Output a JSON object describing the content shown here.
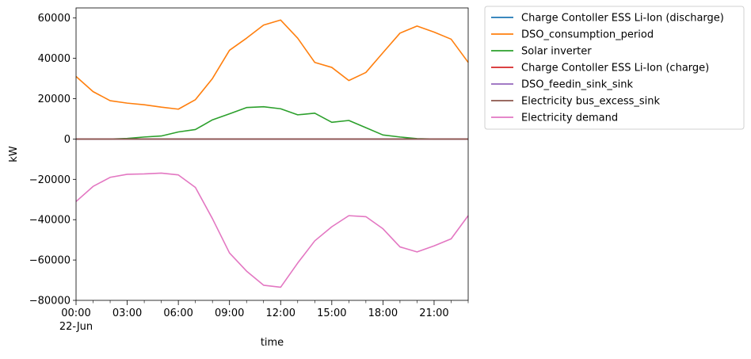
{
  "chart_data": {
    "type": "line",
    "title": "",
    "xlabel": "time",
    "ylabel": "kW",
    "x": [
      "00:00",
      "01:00",
      "02:00",
      "03:00",
      "04:00",
      "05:00",
      "06:00",
      "07:00",
      "08:00",
      "09:00",
      "10:00",
      "11:00",
      "12:00",
      "13:00",
      "14:00",
      "15:00",
      "16:00",
      "17:00",
      "18:00",
      "19:00",
      "20:00",
      "21:00",
      "22:00",
      "23:00"
    ],
    "x_ticks": [
      {
        "label": "00:00",
        "sublabel": "22-Jun",
        "hour": 0
      },
      {
        "label": "03:00",
        "hour": 3
      },
      {
        "label": "06:00",
        "hour": 6
      },
      {
        "label": "09:00",
        "hour": 9
      },
      {
        "label": "12:00",
        "hour": 12
      },
      {
        "label": "15:00",
        "hour": 15
      },
      {
        "label": "18:00",
        "hour": 18
      },
      {
        "label": "21:00",
        "hour": 21
      }
    ],
    "xlim": [
      0,
      23
    ],
    "ylim": [
      -80000,
      65000
    ],
    "y_ticks": [
      60000,
      40000,
      20000,
      0,
      -20000,
      -40000,
      -60000,
      -80000
    ],
    "grid": false,
    "legend_position": "outside-right",
    "series": [
      {
        "name": "Charge Contoller ESS Li-Ion (discharge)",
        "color": "#1f77b4",
        "values": [
          0,
          0,
          0,
          0,
          0,
          0,
          0,
          0,
          0,
          0,
          0,
          0,
          0,
          0,
          0,
          0,
          0,
          0,
          0,
          0,
          0,
          0,
          0,
          0
        ]
      },
      {
        "name": "DSO_consumption_period",
        "color": "#ff7f0e",
        "values": [
          31000,
          23500,
          19000,
          17800,
          17000,
          15800,
          14800,
          19500,
          30000,
          44000,
          50000,
          56500,
          59000,
          50000,
          38000,
          35500,
          29000,
          33000,
          42800,
          52500,
          56000,
          53000,
          49500,
          38000
        ]
      },
      {
        "name": "Solar inverter",
        "color": "#2ca02c",
        "values": [
          0,
          0,
          0,
          300,
          1000,
          1500,
          3500,
          4700,
          9500,
          12500,
          15600,
          16000,
          15000,
          12000,
          12800,
          8300,
          9200,
          5600,
          2000,
          1000,
          200,
          0,
          0,
          0
        ]
      },
      {
        "name": "Charge Contoller ESS Li-Ion (charge)",
        "color": "#d62728",
        "values": [
          0,
          0,
          0,
          0,
          0,
          0,
          0,
          0,
          0,
          0,
          0,
          0,
          0,
          0,
          0,
          0,
          0,
          0,
          0,
          0,
          0,
          0,
          0,
          0
        ]
      },
      {
        "name": "DSO_feedin_sink_sink",
        "color": "#9467bd",
        "values": [
          0,
          0,
          0,
          0,
          0,
          0,
          0,
          0,
          0,
          0,
          0,
          0,
          0,
          0,
          0,
          0,
          0,
          0,
          0,
          0,
          0,
          0,
          0,
          0
        ]
      },
      {
        "name": "Electricity bus_excess_sink",
        "color": "#8c564b",
        "values": [
          0,
          0,
          0,
          0,
          0,
          0,
          0,
          0,
          0,
          0,
          0,
          0,
          0,
          0,
          0,
          0,
          0,
          0,
          0,
          0,
          0,
          0,
          0,
          0
        ]
      },
      {
        "name": "Electricity demand",
        "color": "#e377c2",
        "values": [
          -31000,
          -23500,
          -19000,
          -17500,
          -17300,
          -16900,
          -17800,
          -24000,
          -39500,
          -56500,
          -65500,
          -72500,
          -73500,
          -61500,
          -50500,
          -43500,
          -38000,
          -38500,
          -44500,
          -53500,
          -56000,
          -53000,
          -49500,
          -38000
        ]
      }
    ]
  }
}
